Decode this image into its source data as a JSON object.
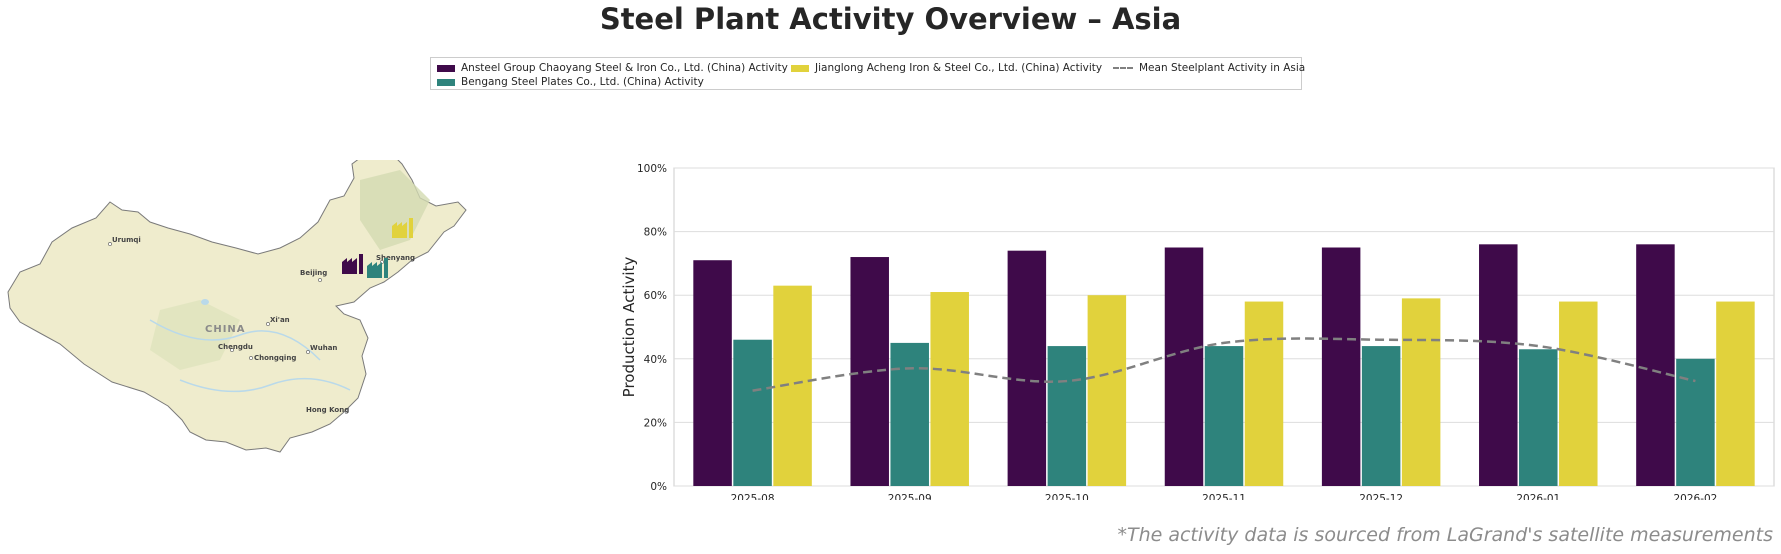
{
  "title": "Steel Plant Activity Overview – Asia",
  "legend": {
    "items": [
      {
        "label": "Ansteel Group Chaoyang Steel & Iron Co., Ltd. (China) Activity",
        "color": "#3f0a4a"
      },
      {
        "label": "Bengang Steel Plates Co., Ltd. (China) Activity",
        "color": "#2e837c"
      },
      {
        "label": "Jianglong Acheng Iron & Steel Co., Ltd. (China) Activity",
        "color": "#e1d23c"
      },
      {
        "label": "Mean Steelplant Activity in Asia",
        "color": "#808080"
      }
    ]
  },
  "map": {
    "country_label": "CHINA",
    "cities": [
      "Urumqi",
      "Beijing",
      "Shenyang",
      "Xi'an",
      "Chengdu",
      "Chongqing",
      "Wuhan",
      "Hong Kong"
    ],
    "colors": {
      "land": "#efeccd",
      "border": "#7a7a7a",
      "relief": "#d3dbb2",
      "water": "#b9d9ea"
    }
  },
  "footnote": "*The activity data is sourced from LaGrand's satellite measurements",
  "chart_data": {
    "type": "bar",
    "categories": [
      "2025-08",
      "2025-09",
      "2025-10",
      "2025-11",
      "2025-12",
      "2026-01",
      "2026-02"
    ],
    "series": [
      {
        "name": "Ansteel Group Chaoyang Steel & Iron Co., Ltd. (China) Activity",
        "color": "#3f0a4a",
        "values": [
          71,
          72,
          74,
          75,
          75,
          76,
          76
        ]
      },
      {
        "name": "Bengang Steel Plates Co., Ltd. (China) Activity",
        "color": "#2e837c",
        "values": [
          46,
          45,
          44,
          44,
          44,
          43,
          40
        ]
      },
      {
        "name": "Jianglong Acheng Iron & Steel Co., Ltd. (China) Activity",
        "color": "#e1d23c",
        "values": [
          63,
          61,
          60,
          58,
          59,
          58,
          58
        ]
      }
    ],
    "line": {
      "name": "Mean Steelplant Activity in Asia",
      "style": "dashed",
      "color": "#808080",
      "values": [
        30,
        37,
        33,
        45,
        46,
        44,
        33
      ]
    },
    "ylabel": "Production Activity",
    "xlabel": "",
    "ylim": [
      0,
      100
    ],
    "yticks": [
      "0%",
      "20%",
      "40%",
      "60%",
      "80%",
      "100%"
    ],
    "grid": true,
    "legend_position": "top-center"
  }
}
